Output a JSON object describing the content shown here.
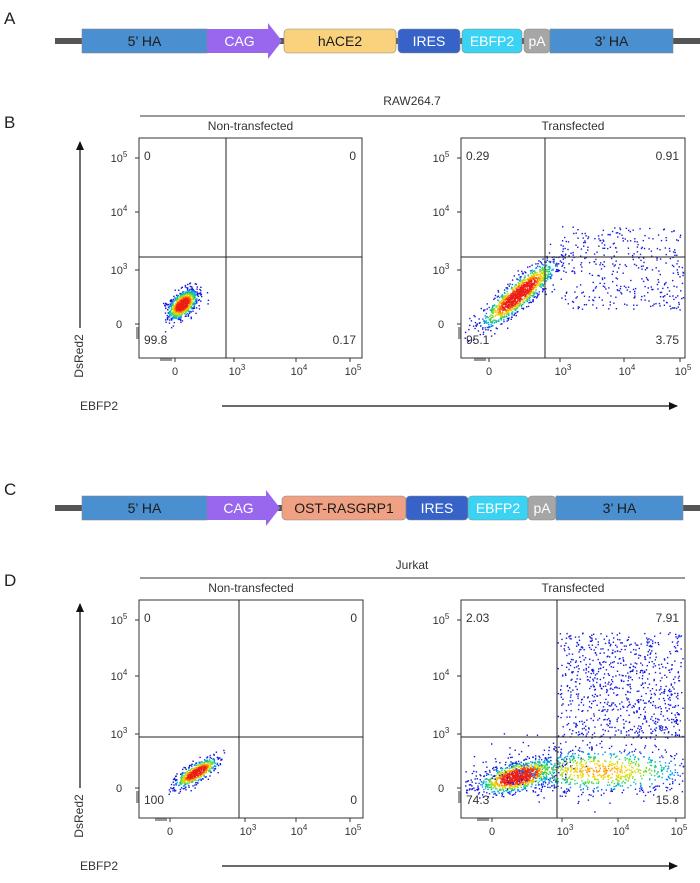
{
  "panels": {
    "a": {
      "letter": "A",
      "construct": [
        {
          "key": "ha5",
          "label": "5’ HA",
          "color": "#4a8fd0"
        },
        {
          "key": "promoter",
          "label": "CAG",
          "color": "#9966ee"
        },
        {
          "key": "gene",
          "label": "hACE2",
          "color": "#fad27e"
        },
        {
          "key": "ires",
          "label": "IRES",
          "color": "#3763c8"
        },
        {
          "key": "reporter",
          "label": "EBFP2",
          "color": "#3ad3f3"
        },
        {
          "key": "pa",
          "label": "pA",
          "color": "#a6a6a6"
        },
        {
          "key": "ha3",
          "label": "3’ HA",
          "color": "#4a8fd0"
        }
      ]
    },
    "b": {
      "letter": "B",
      "cell_line": "RAW264.7"
    },
    "c": {
      "letter": "C",
      "construct": [
        {
          "key": "ha5",
          "label": "5’ HA",
          "color": "#4a8fd0"
        },
        {
          "key": "promoter",
          "label": "CAG",
          "color": "#9966ee"
        },
        {
          "key": "gene",
          "label": "OST-RASGRP1",
          "color": "#f0a184"
        },
        {
          "key": "ires",
          "label": "IRES",
          "color": "#3763c8"
        },
        {
          "key": "reporter",
          "label": "EBFP2",
          "color": "#3ad3f3"
        },
        {
          "key": "pa",
          "label": "pA",
          "color": "#a6a6a6"
        },
        {
          "key": "ha3",
          "label": "3’ HA",
          "color": "#4a8fd0"
        }
      ]
    },
    "d": {
      "letter": "D",
      "cell_line": "Jurkat"
    }
  },
  "chart_data": [
    {
      "type": "scatter",
      "panel": "B",
      "title": "Non-transfected",
      "cell_line": "RAW264.7",
      "xlabel": "EBFP2",
      "ylabel": "DsRed2",
      "x_ticks": [
        "0",
        "10^3",
        "10^4",
        "10^5"
      ],
      "y_ticks": [
        "0",
        "10^3",
        "10^4",
        "10^5"
      ],
      "quadrants": {
        "upper_left": "0",
        "upper_right": "0",
        "lower_left": "99.8",
        "lower_right": "0.17"
      }
    },
    {
      "type": "scatter",
      "panel": "B",
      "title": "Transfected",
      "cell_line": "RAW264.7",
      "xlabel": "EBFP2",
      "ylabel": "DsRed2",
      "x_ticks": [
        "0",
        "10^3",
        "10^4",
        "10^5"
      ],
      "y_ticks": [
        "0",
        "10^3",
        "10^4",
        "10^5"
      ],
      "quadrants": {
        "upper_left": "0.29",
        "upper_right": "0.91",
        "lower_left": "95.1",
        "lower_right": "3.75"
      }
    },
    {
      "type": "scatter",
      "panel": "D",
      "title": "Non-transfected",
      "cell_line": "Jurkat",
      "xlabel": "EBFP2",
      "ylabel": "DsRed2",
      "x_ticks": [
        "0",
        "10^3",
        "10^4",
        "10^5"
      ],
      "y_ticks": [
        "0",
        "10^3",
        "10^4",
        "10^5"
      ],
      "quadrants": {
        "upper_left": "0",
        "upper_right": "0",
        "lower_left": "100",
        "lower_right": "0"
      }
    },
    {
      "type": "scatter",
      "panel": "D",
      "title": "Transfected",
      "cell_line": "Jurkat",
      "xlabel": "EBFP2",
      "ylabel": "DsRed2",
      "x_ticks": [
        "0",
        "10^3",
        "10^4",
        "10^5"
      ],
      "y_ticks": [
        "0",
        "10^3",
        "10^4",
        "10^5"
      ],
      "quadrants": {
        "upper_left": "2.03",
        "upper_right": "7.91",
        "lower_left": "74.3",
        "lower_right": "15.8"
      }
    }
  ]
}
